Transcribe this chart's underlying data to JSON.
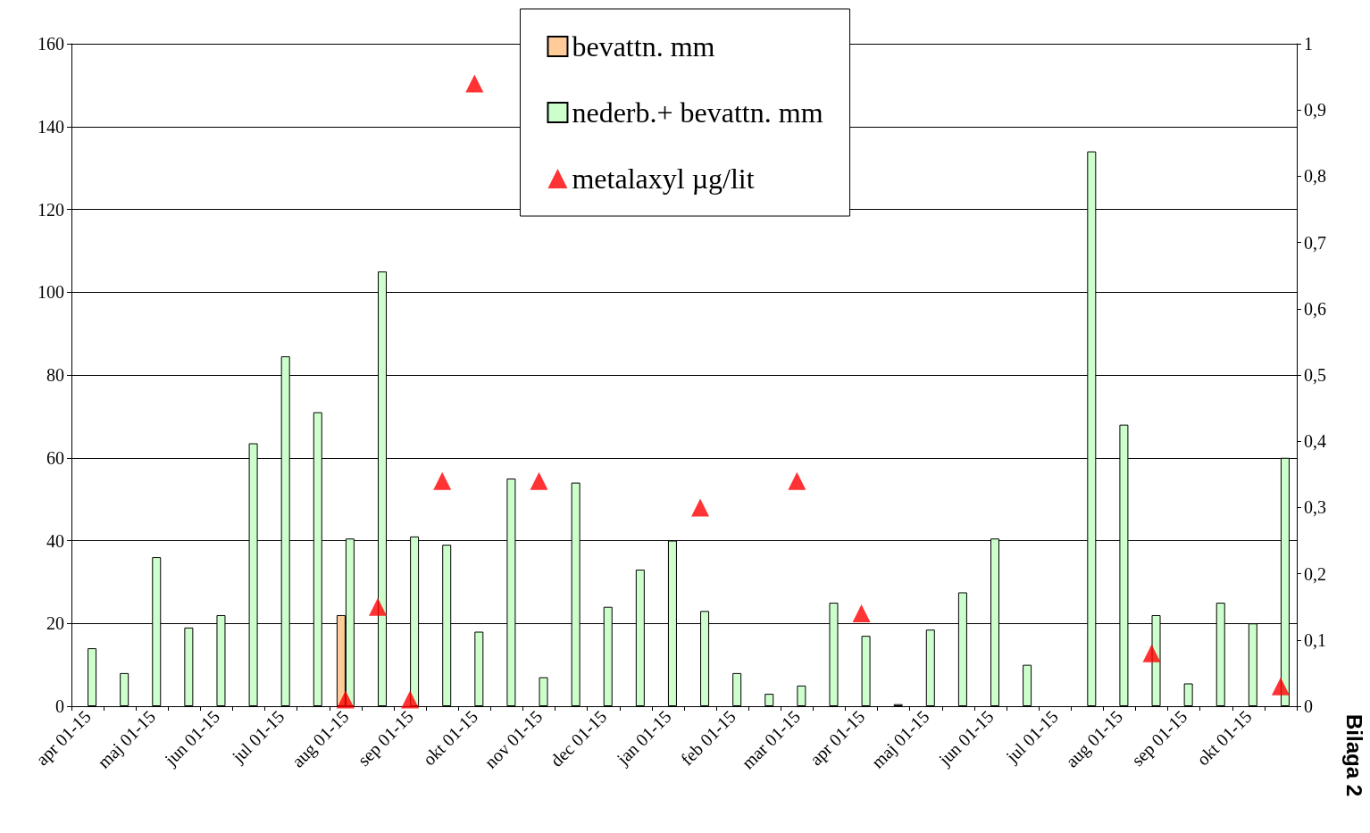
{
  "chart_data": {
    "type": "bar",
    "categories": [
      "apr 01-15",
      null,
      "maj 01-15",
      null,
      "jun 01-15",
      null,
      "jul 01-15",
      null,
      "aug 01-15",
      null,
      "sep 01-15",
      null,
      "okt 01-15",
      null,
      "nov 01-15",
      null,
      "dec 01-15",
      null,
      "jan 01-15",
      null,
      "feb 01-15",
      null,
      "mar 01-15",
      null,
      "apr 01-15",
      null,
      "maj 01-15",
      null,
      "jun 01-15",
      null,
      "jul 01-15",
      null,
      "aug 01-15",
      null,
      "sep 01-15",
      null,
      "okt 01-15",
      null
    ],
    "series": [
      {
        "name": "bevattn. mm",
        "color": "#ffcc99",
        "values": [
          null,
          null,
          null,
          null,
          null,
          null,
          null,
          null,
          22,
          null,
          null,
          null,
          null,
          null,
          null,
          null,
          null,
          null,
          null,
          null,
          null,
          null,
          null,
          null,
          null,
          null,
          null,
          null,
          null,
          null,
          null,
          null,
          null,
          null,
          null,
          null,
          null,
          null
        ]
      },
      {
        "name": "nederb.+ bevattn. mm",
        "color": "#ccffcc",
        "values": [
          14,
          8,
          36,
          19,
          22,
          63.5,
          84.5,
          71,
          40.5,
          105,
          41,
          39,
          18,
          55,
          7,
          54,
          24,
          33,
          40,
          23,
          8,
          3,
          5,
          25,
          17,
          0.5,
          18.5,
          27.5,
          40.5,
          10,
          null,
          134,
          68,
          22,
          5.5,
          25,
          20,
          60
        ]
      },
      {
        "name": "metalaxyl µg/lit",
        "type": "scatter",
        "axis": "y2",
        "color": "#ff0000",
        "values": [
          null,
          null,
          null,
          null,
          null,
          null,
          null,
          null,
          0.01,
          0.15,
          0.01,
          0.34,
          0.94,
          null,
          0.34,
          null,
          null,
          null,
          null,
          0.3,
          null,
          null,
          0.34,
          null,
          0.14,
          null,
          null,
          null,
          null,
          null,
          null,
          null,
          null,
          0.08,
          null,
          null,
          null,
          0.03
        ]
      }
    ],
    "ylim": [
      0,
      160
    ],
    "yticks": [
      0,
      20,
      40,
      60,
      80,
      100,
      120,
      140,
      160
    ],
    "y2lim": [
      0,
      1
    ],
    "y2ticks": [
      0,
      {
        "value": 0.1,
        "label": "0,1"
      },
      {
        "value": 0.2,
        "label": "0,2"
      },
      {
        "value": 0.3,
        "label": "0,3"
      },
      {
        "value": 0.4,
        "label": "0,4"
      },
      {
        "value": 0.5,
        "label": "0,5"
      },
      {
        "value": 0.6,
        "label": "0,6"
      },
      {
        "value": 0.7,
        "label": "0,7"
      },
      {
        "value": 0.8,
        "label": "0,8"
      },
      {
        "value": 0.9,
        "label": "0,9"
      },
      1
    ],
    "grid": "y",
    "legend": "top",
    "marker": "triangle",
    "annotations": [
      "Bilaga 2"
    ]
  }
}
